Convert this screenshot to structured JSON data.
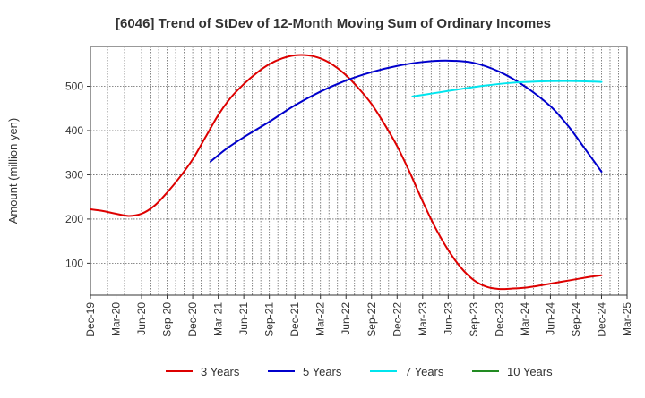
{
  "chart_data": {
    "type": "line",
    "title": "[6046]  Trend of StDev of 12-Month Moving Sum of Ordinary Incomes",
    "xlabel": "",
    "ylabel": "Amount (million yen)",
    "ylim": [
      28,
      590
    ],
    "yticks": [
      100,
      200,
      300,
      400,
      500
    ],
    "x_categories": [
      "Dec-19",
      "Mar-20",
      "Jun-20",
      "Sep-20",
      "Dec-20",
      "Mar-21",
      "Jun-21",
      "Sep-21",
      "Dec-21",
      "Mar-22",
      "Jun-22",
      "Sep-22",
      "Dec-22",
      "Mar-23",
      "Jun-23",
      "Sep-23",
      "Dec-23",
      "Mar-24",
      "Jun-24",
      "Sep-24",
      "Dec-24",
      "Mar-25"
    ],
    "grid": true,
    "legend_position": "bottom",
    "series": [
      {
        "name": "3 Years",
        "color": "#dd0000",
        "x_index": [
          0,
          0.5,
          1,
          1.5,
          2,
          2.5,
          3,
          3.5,
          4,
          4.5,
          5,
          5.5,
          6,
          6.5,
          7,
          7.5,
          8,
          8.5,
          9,
          9.5,
          10,
          10.5,
          11,
          11.5,
          12,
          12.5,
          13,
          13.5,
          14,
          14.5,
          15,
          15.5,
          16,
          16.5,
          17,
          17.5,
          18,
          18.5,
          19,
          19.5,
          20
        ],
        "values": [
          222,
          218,
          212,
          207,
          212,
          230,
          260,
          295,
          335,
          385,
          435,
          475,
          505,
          530,
          550,
          563,
          570,
          570,
          563,
          548,
          525,
          495,
          460,
          415,
          365,
          305,
          240,
          180,
          130,
          90,
          62,
          47,
          42,
          43,
          45,
          49,
          54,
          59,
          64,
          69,
          73
        ]
      },
      {
        "name": "5 Years",
        "color": "#0000cc",
        "x_index": [
          4.7,
          5.3,
          6,
          7,
          8,
          9,
          10,
          11,
          12,
          13,
          14,
          15,
          16,
          17,
          18,
          18.7,
          19.3,
          20
        ],
        "values": [
          330,
          358,
          385,
          420,
          457,
          488,
          513,
          532,
          546,
          555,
          558,
          553,
          533,
          500,
          455,
          410,
          363,
          307
        ]
      },
      {
        "name": "7 Years",
        "color": "#00e5ee",
        "x_index": [
          12.6,
          13.5,
          14.5,
          15.5,
          16.5,
          17.5,
          18.5,
          19.5,
          20
        ],
        "values": [
          477,
          485,
          494,
          502,
          508,
          511,
          512,
          511,
          510
        ]
      },
      {
        "name": "10 Years",
        "color": "#228b22",
        "x_index": [],
        "values": []
      }
    ]
  }
}
